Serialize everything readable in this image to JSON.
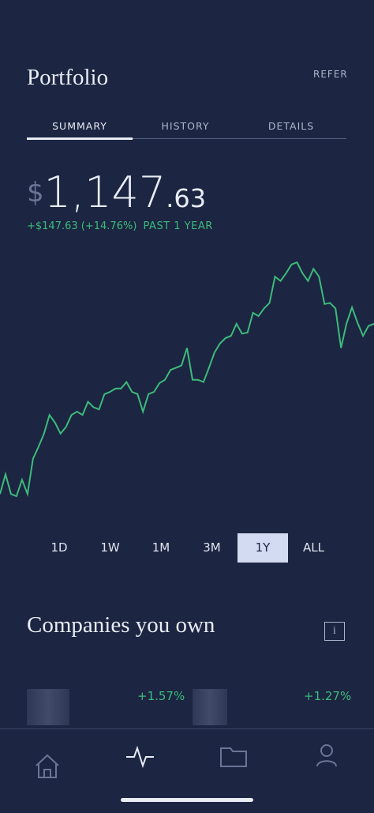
{
  "header": {
    "title": "Portfolio",
    "action": "REFER"
  },
  "tabs": {
    "items": [
      "SUMMARY",
      "HISTORY",
      "DETAILS"
    ],
    "selected": 0
  },
  "balance": {
    "currency": "$",
    "whole": "1,147",
    "fraction": ".63",
    "change": "+$147.63",
    "change_pct": "(+14.76%)",
    "period": "PAST 1 YEAR"
  },
  "chart": {
    "type": "line",
    "color": "#3dbb7c",
    "values": [
      993,
      1011,
      993,
      991,
      1006,
      993,
      1025,
      1036,
      1048,
      1065,
      1058,
      1048,
      1054,
      1065,
      1068,
      1065,
      1077,
      1072,
      1070,
      1084,
      1086,
      1089,
      1089,
      1095,
      1086,
      1084,
      1068,
      1084,
      1086,
      1094,
      1097,
      1106,
      1108,
      1110,
      1126,
      1097,
      1097,
      1095,
      1108,
      1122,
      1130,
      1135,
      1137,
      1148,
      1139,
      1140,
      1158,
      1155,
      1162,
      1167,
      1191,
      1187,
      1194,
      1202,
      1204,
      1194,
      1187,
      1198,
      1191,
      1166,
      1167,
      1162,
      1126,
      1148,
      1163,
      1149,
      1137,
      1146,
      1148
    ]
  },
  "ranges": {
    "items": [
      "1D",
      "1W",
      "1M",
      "3M",
      "1Y",
      "ALL"
    ],
    "selected": 4
  },
  "companies": {
    "title": "Companies you own",
    "info": "i",
    "holdings": [
      {
        "change": "+1.57%"
      },
      {
        "change": "+1.27%"
      }
    ]
  }
}
